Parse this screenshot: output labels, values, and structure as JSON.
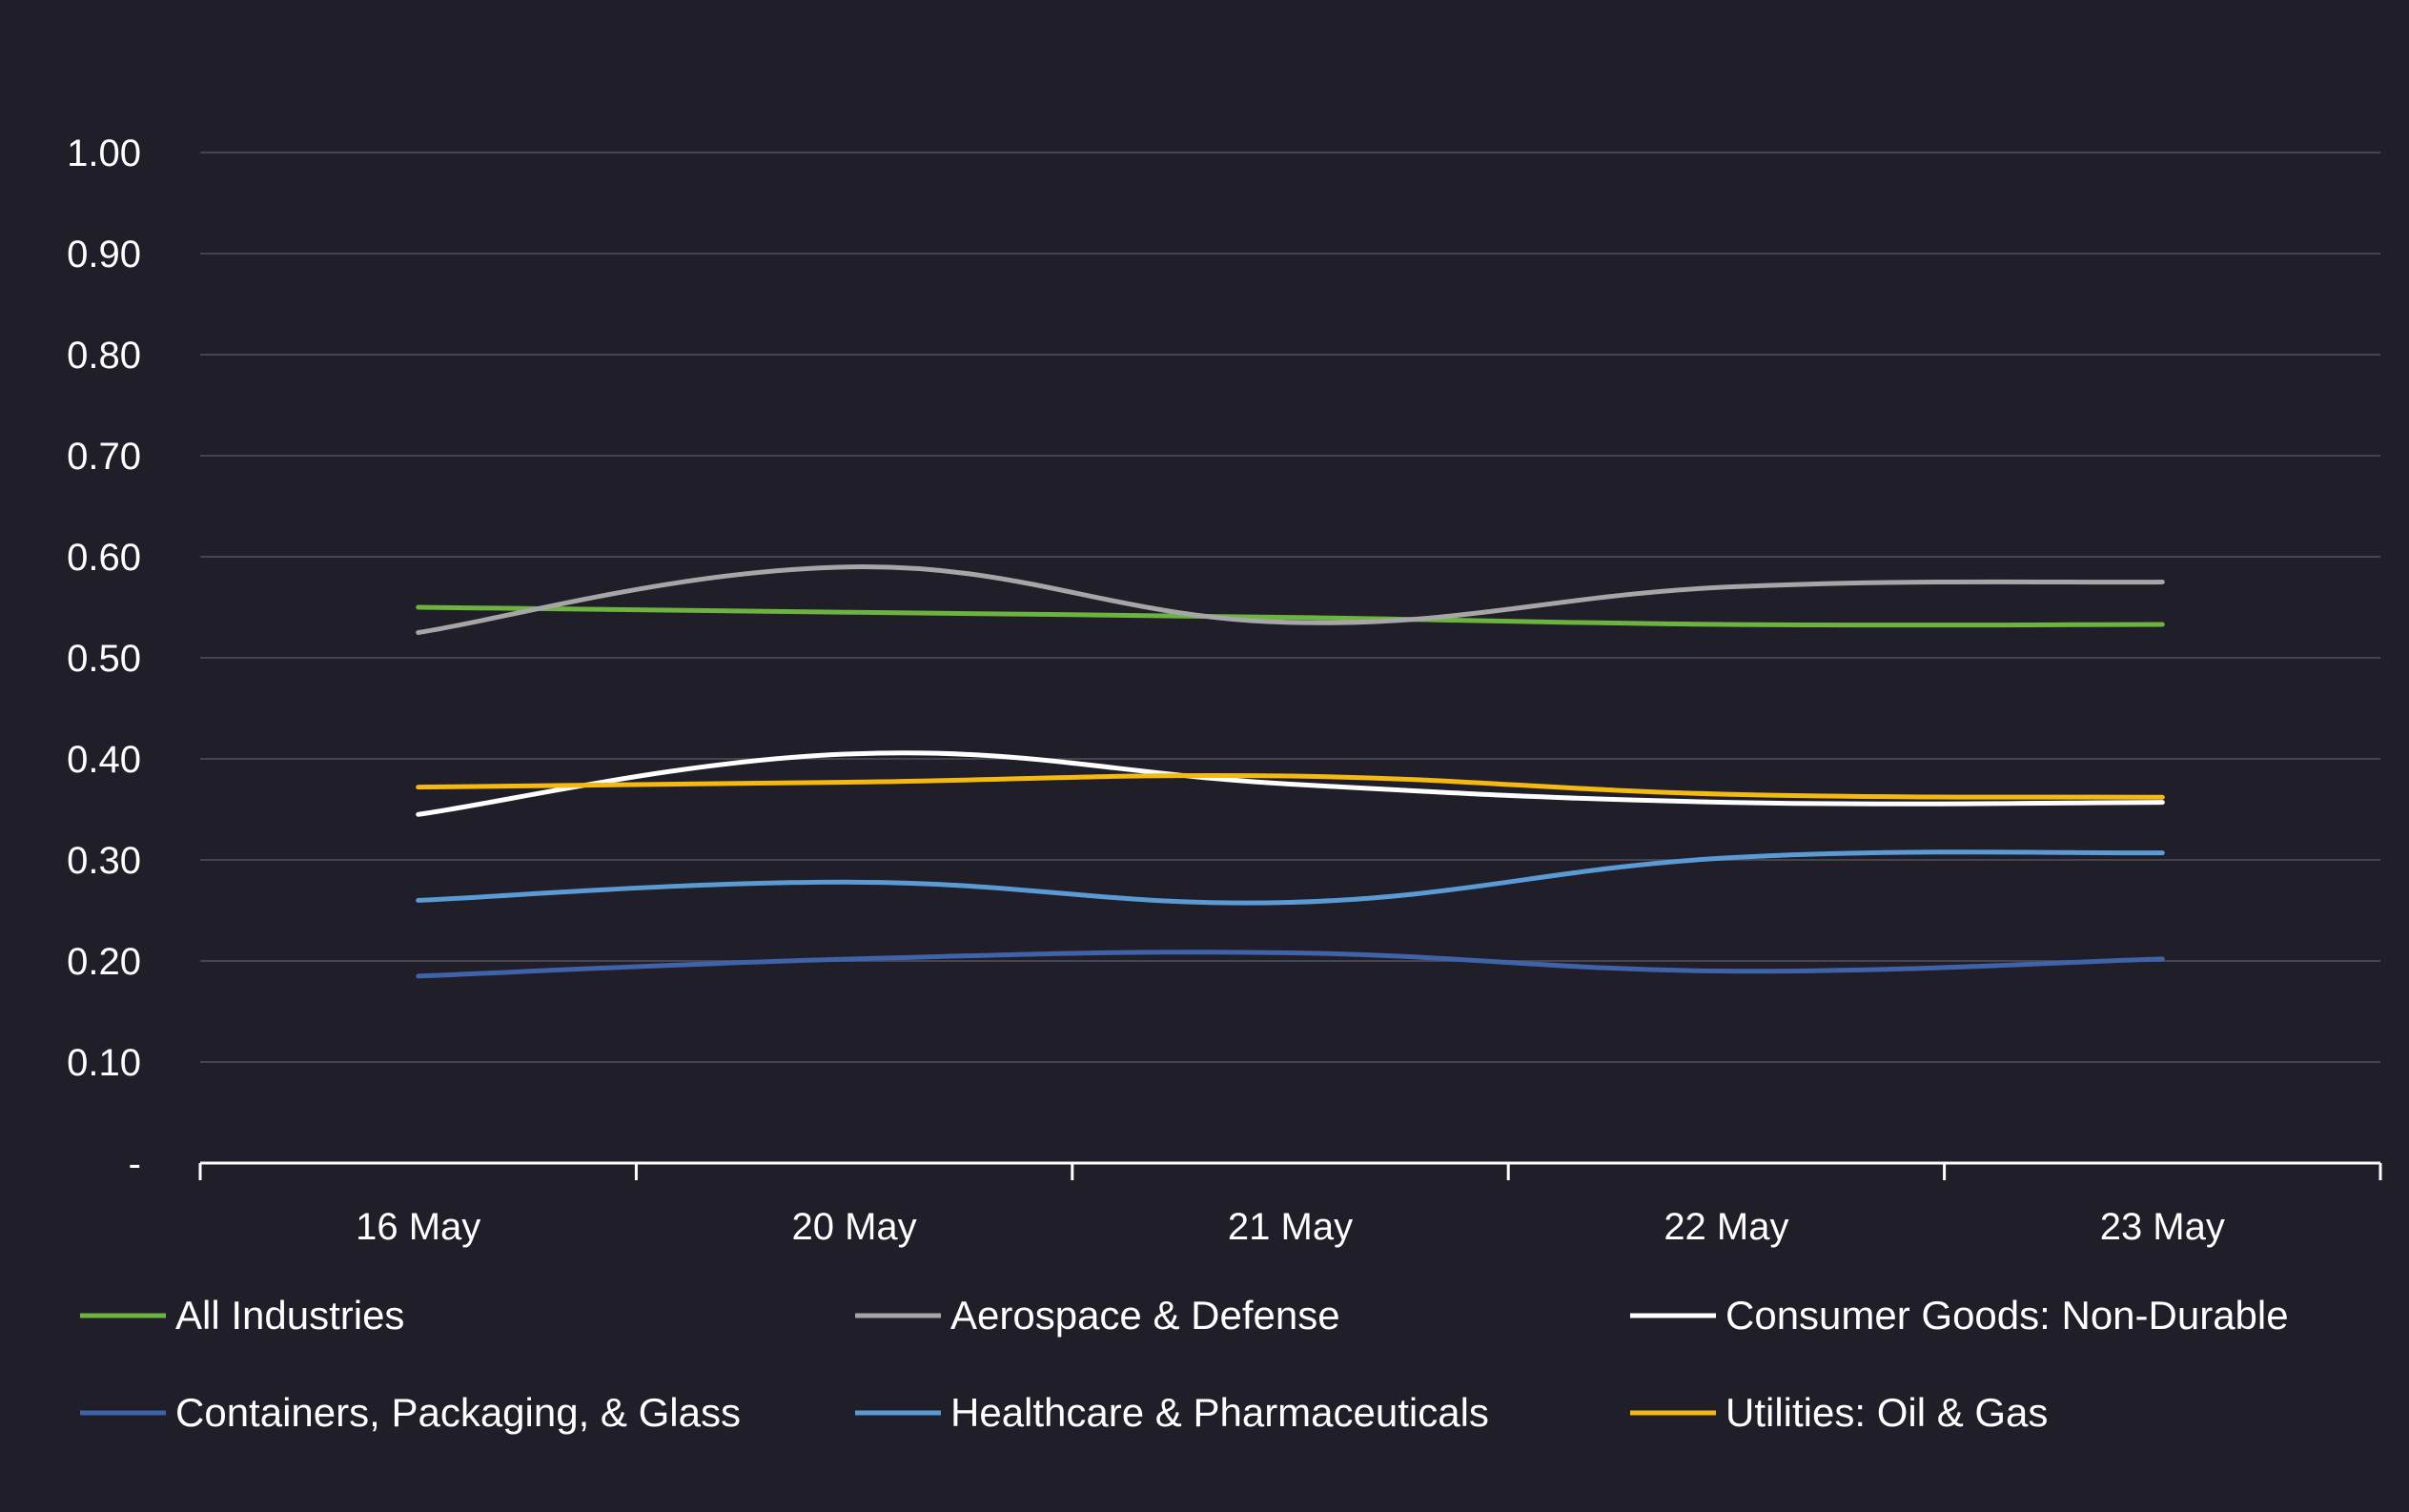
{
  "chart_data": {
    "type": "line",
    "title": "",
    "xlabel": "",
    "ylabel": "",
    "categories": [
      "16 May",
      "20 May",
      "21 May",
      "22 May",
      "23 May"
    ],
    "ylim": [
      0,
      1.0
    ],
    "yticks": [
      {
        "value": 0,
        "label": "-"
      },
      {
        "value": 0.1,
        "label": "0.10"
      },
      {
        "value": 0.2,
        "label": "0.20"
      },
      {
        "value": 0.3,
        "label": "0.30"
      },
      {
        "value": 0.4,
        "label": "0.40"
      },
      {
        "value": 0.5,
        "label": "0.50"
      },
      {
        "value": 0.6,
        "label": "0.60"
      },
      {
        "value": 0.7,
        "label": "0.70"
      },
      {
        "value": 0.8,
        "label": "0.80"
      },
      {
        "value": 0.9,
        "label": "0.90"
      },
      {
        "value": 1.0,
        "label": "1.00"
      }
    ],
    "grid": true,
    "legend_position": "bottom",
    "series": [
      {
        "name": "All Industries",
        "color": "#6cb33f",
        "values": [
          0.55,
          0.545,
          0.54,
          0.533,
          0.533
        ]
      },
      {
        "name": "Aerospace & Defense",
        "color": "#a6a6a6",
        "values": [
          0.525,
          0.59,
          0.535,
          0.57,
          0.575
        ]
      },
      {
        "name": "Consumer Goods: Non-Durable",
        "color": "#ffffff",
        "values": [
          0.345,
          0.405,
          0.375,
          0.357,
          0.357
        ]
      },
      {
        "name": "Containers, Packaging, & Glass",
        "color": "#3f63a8",
        "values": [
          0.185,
          0.202,
          0.208,
          0.19,
          0.202
        ]
      },
      {
        "name": "Healthcare & Pharmaceuticals",
        "color": "#5b9bd5",
        "values": [
          0.26,
          0.278,
          0.258,
          0.302,
          0.307
        ]
      },
      {
        "name": "Utilities: Oil & Gas",
        "color": "#f5b914",
        "values": [
          0.372,
          0.377,
          0.383,
          0.365,
          0.362
        ]
      }
    ],
    "colors": {
      "background": "#1f1e29",
      "grid": "#45444f",
      "axis": "#ffffff",
      "text": "#ffffff"
    }
  }
}
